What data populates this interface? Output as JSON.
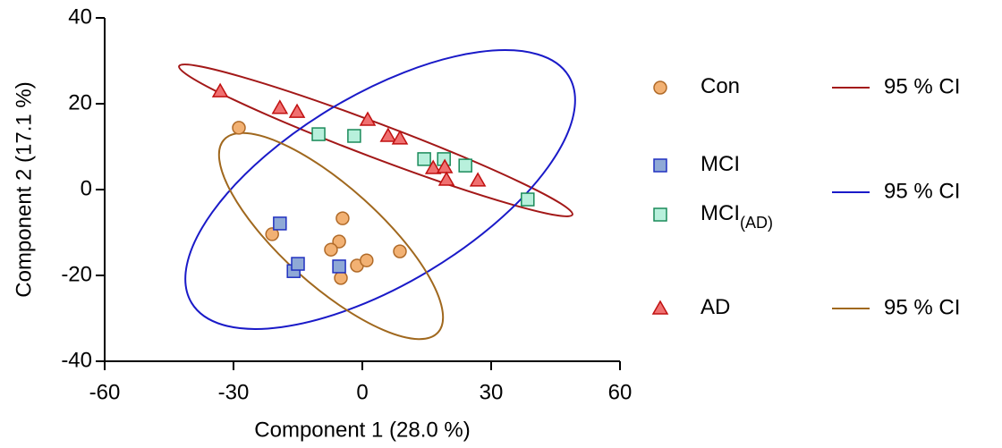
{
  "chart_data": {
    "type": "scatter",
    "xlabel": "Component 1 (28.0 %)",
    "ylabel": "Component 2 (17.1 %)",
    "xlim": [
      -60,
      60
    ],
    "xticks": [
      -60,
      -30,
      0,
      30,
      60
    ],
    "ylim": [
      -40,
      40
    ],
    "yticks": [
      -40,
      -20,
      0,
      20,
      40
    ],
    "series": [
      {
        "name": "Con",
        "marker": "circle",
        "color": "#f2b173",
        "edgecolor": "#b06a28",
        "x": [
          -28.75,
          -21,
          -4.6,
          -5.4,
          -7.3,
          -1.25,
          1.0,
          8.75,
          -5.0
        ],
        "y": [
          14.4,
          -10.4,
          -6.7,
          -12.1,
          -14.0,
          -17.7,
          -16.5,
          -14.4,
          -20.6
        ]
      },
      {
        "name": "MCI",
        "marker": "square",
        "color": "#8fa9d6",
        "edgecolor": "#2030c0",
        "x": [
          -19.2,
          -16.0,
          -15.0,
          -5.4
        ],
        "y": [
          -7.9,
          -19.0,
          -17.3,
          -17.9
        ]
      },
      {
        "name": "MCI",
        "name_subscript": "(AD)",
        "marker": "square",
        "color": "#b8f0dc",
        "edgecolor": "#1a8a5a",
        "x": [
          -10.2,
          -1.9,
          14.4,
          19.0,
          24.0,
          38.5
        ],
        "y": [
          12.9,
          12.5,
          7.1,
          7.1,
          5.6,
          -2.3
        ]
      },
      {
        "name": "AD",
        "marker": "triangle",
        "color": "#f07070",
        "edgecolor": "#c01010",
        "x": [
          -33.1,
          -19.2,
          -15.2,
          1.25,
          6.0,
          8.75,
          16.5,
          19.2,
          19.6,
          26.9
        ],
        "y": [
          22.9,
          19.0,
          18.1,
          16.25,
          12.5,
          11.9,
          5.0,
          5.2,
          2.3,
          2.1
        ]
      }
    ],
    "ellipses": [
      {
        "label": "95 % CI",
        "color": "#a31818"
      },
      {
        "label": "95 % CI",
        "color": "#1a1ac8"
      },
      {
        "label": "95 % CI",
        "color": "#a0681e"
      }
    ]
  }
}
